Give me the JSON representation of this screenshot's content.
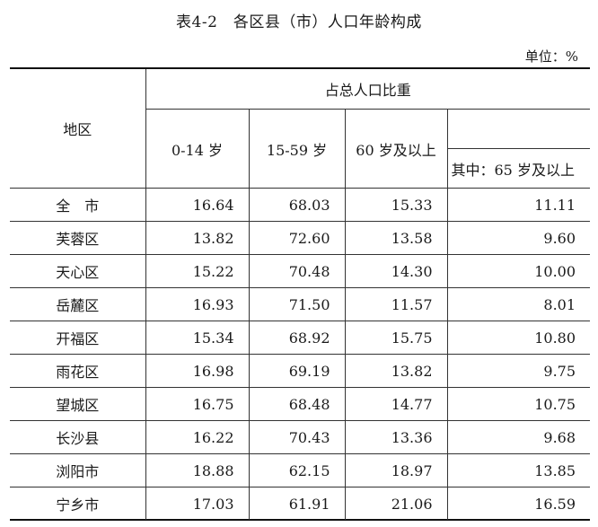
{
  "title": "表4-2　各区县（市）人口年龄构成",
  "unit": "单位：%",
  "header": {
    "region": "地区",
    "group": "占总人口比重",
    "col_0_14": "0-14 岁",
    "col_15_59": "15-59 岁",
    "col_60_plus": "60 岁及以上",
    "col_65_plus": "其中：65 岁及以上"
  },
  "rows": [
    {
      "region": "全　市",
      "a": "16.64",
      "b": "68.03",
      "c": "15.33",
      "d": "11.11"
    },
    {
      "region": "芙蓉区",
      "a": "13.82",
      "b": "72.60",
      "c": "13.58",
      "d": "9.60"
    },
    {
      "region": "天心区",
      "a": "15.22",
      "b": "70.48",
      "c": "14.30",
      "d": "10.00"
    },
    {
      "region": "岳麓区",
      "a": "16.93",
      "b": "71.50",
      "c": "11.57",
      "d": "8.01"
    },
    {
      "region": "开福区",
      "a": "15.34",
      "b": "68.92",
      "c": "15.75",
      "d": "10.80"
    },
    {
      "region": "雨花区",
      "a": "16.98",
      "b": "69.19",
      "c": "13.82",
      "d": "9.75"
    },
    {
      "region": "望城区",
      "a": "16.75",
      "b": "68.48",
      "c": "14.77",
      "d": "10.75"
    },
    {
      "region": "长沙县",
      "a": "16.22",
      "b": "70.43",
      "c": "13.36",
      "d": "9.68"
    },
    {
      "region": "浏阳市",
      "a": "18.88",
      "b": "62.15",
      "c": "18.97",
      "d": "13.85"
    },
    {
      "region": "宁乡市",
      "a": "17.03",
      "b": "61.91",
      "c": "21.06",
      "d": "16.59"
    }
  ]
}
